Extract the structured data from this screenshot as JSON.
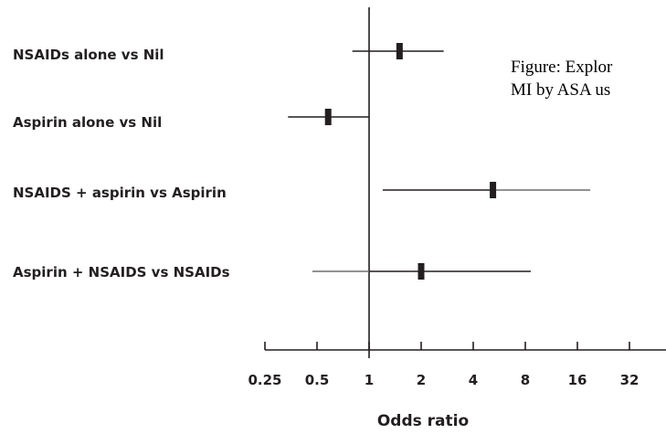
{
  "chart_data": {
    "type": "forest",
    "title": "",
    "xlabel": "Odds ratio",
    "x_scale": "log2",
    "xlim": [
      0.25,
      64
    ],
    "x_ticks": [
      0.25,
      0.5,
      1,
      2,
      4,
      8,
      16,
      32
    ],
    "x_tick_labels": [
      "0.25",
      "0.5",
      "1",
      "2",
      "4",
      "8",
      "16",
      "32"
    ],
    "reference_line": 1,
    "rows": [
      {
        "label": "NSAIDs alone vs Nil",
        "estimate": 1.5,
        "ci_low": 0.8,
        "ci_high": 2.7
      },
      {
        "label": "Aspirin alone vs Nil",
        "estimate": 0.58,
        "ci_low": 0.34,
        "ci_high": 1.0
      },
      {
        "label": "NSAIDS + aspirin vs Aspirin",
        "estimate": 5.2,
        "ci_low": 1.2,
        "ci_high": 19.0
      },
      {
        "label": "Aspirin + NSAIDS vs NSAIDs",
        "estimate": 2.0,
        "ci_low": 0.47,
        "ci_high": 8.6
      }
    ],
    "caption_lines": [
      "Figure: Explor",
      "MI by ASA us"
    ],
    "colors": {
      "ink": "#231f20",
      "caption": "#000000",
      "whisker_gray": "#6d6e71"
    }
  }
}
